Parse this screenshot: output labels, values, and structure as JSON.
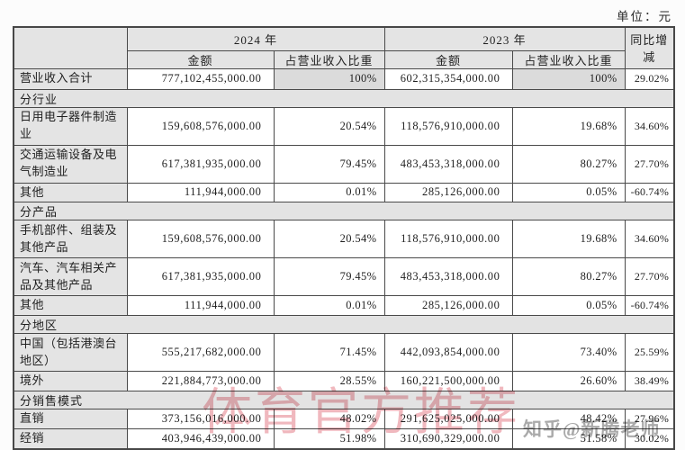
{
  "unit_label": "单位：元",
  "watermarks": {
    "center": "体育官方推荐",
    "zhihu": "知乎@新腾老师"
  },
  "colors": {
    "table_border": "#4a4a4a",
    "header_bg": "#e4e4e4",
    "shaded_cell_bg": "#dbdbdb",
    "watermark_pink": "#e47e88",
    "watermark_gray": "#767676"
  },
  "table": {
    "headers": {
      "year_2024": "2024 年",
      "year_2023": "2023 年",
      "amount": "金额",
      "pct_of_revenue": "占营业收入比重",
      "yoy_change": "同比增减"
    },
    "rows": [
      {
        "type": "data",
        "total": true,
        "label": "营业收入合计",
        "a24": "777,102,455,000.00",
        "p24": "100%",
        "a23": "602,315,354,000.00",
        "p23": "100%",
        "yoy": "29.02%"
      },
      {
        "type": "section",
        "label": "分行业"
      },
      {
        "type": "data",
        "label": "日用电子器件制造业",
        "a24": "159,608,576,000.00",
        "p24": "20.54%",
        "a23": "118,576,910,000.00",
        "p23": "19.68%",
        "yoy": "34.60%"
      },
      {
        "type": "data",
        "label": "交通运输设备及电气制造业",
        "a24": "617,381,935,000.00",
        "p24": "79.45%",
        "a23": "483,453,318,000.00",
        "p23": "80.27%",
        "yoy": "27.70%"
      },
      {
        "type": "data",
        "label": "其他",
        "a24": "111,944,000.00",
        "p24": "0.01%",
        "a23": "285,126,000.00",
        "p23": "0.05%",
        "yoy": "-60.74%"
      },
      {
        "type": "section",
        "label": "分产品"
      },
      {
        "type": "data",
        "label": "手机部件、组装及其他产品",
        "a24": "159,608,576,000.00",
        "p24": "20.54%",
        "a23": "118,576,910,000.00",
        "p23": "19.68%",
        "yoy": "34.60%"
      },
      {
        "type": "data",
        "label": "汽车、汽车相关产品及其他产品",
        "a24": "617,381,935,000.00",
        "p24": "79.45%",
        "a23": "483,453,318,000.00",
        "p23": "80.27%",
        "yoy": "27.70%"
      },
      {
        "type": "data",
        "label": "其他",
        "a24": "111,944,000.00",
        "p24": "0.01%",
        "a23": "285,126,000.00",
        "p23": "0.05%",
        "yoy": "-60.74%"
      },
      {
        "type": "section",
        "label": "分地区"
      },
      {
        "type": "data",
        "label": "中国（包括港澳台地区）",
        "a24": "555,217,682,000.00",
        "p24": "71.45%",
        "a23": "442,093,854,000.00",
        "p23": "73.40%",
        "yoy": "25.59%"
      },
      {
        "type": "data",
        "label": "境外",
        "a24": "221,884,773,000.00",
        "p24": "28.55%",
        "a23": "160,221,500,000.00",
        "p23": "26.60%",
        "yoy": "38.49%"
      },
      {
        "type": "section",
        "label": "分销售模式"
      },
      {
        "type": "data",
        "label": "直销",
        "a24": "373,156,016,000.00",
        "p24": "48.02%",
        "a23": "291,625,025,000.00",
        "p23": "48.42%",
        "yoy": "27.96%"
      },
      {
        "type": "data",
        "label": "经销",
        "a24": "403,946,439,000.00",
        "p24": "51.98%",
        "a23": "310,690,329,000.00",
        "p23": "51.58%",
        "yoy": "30.02%"
      }
    ]
  }
}
